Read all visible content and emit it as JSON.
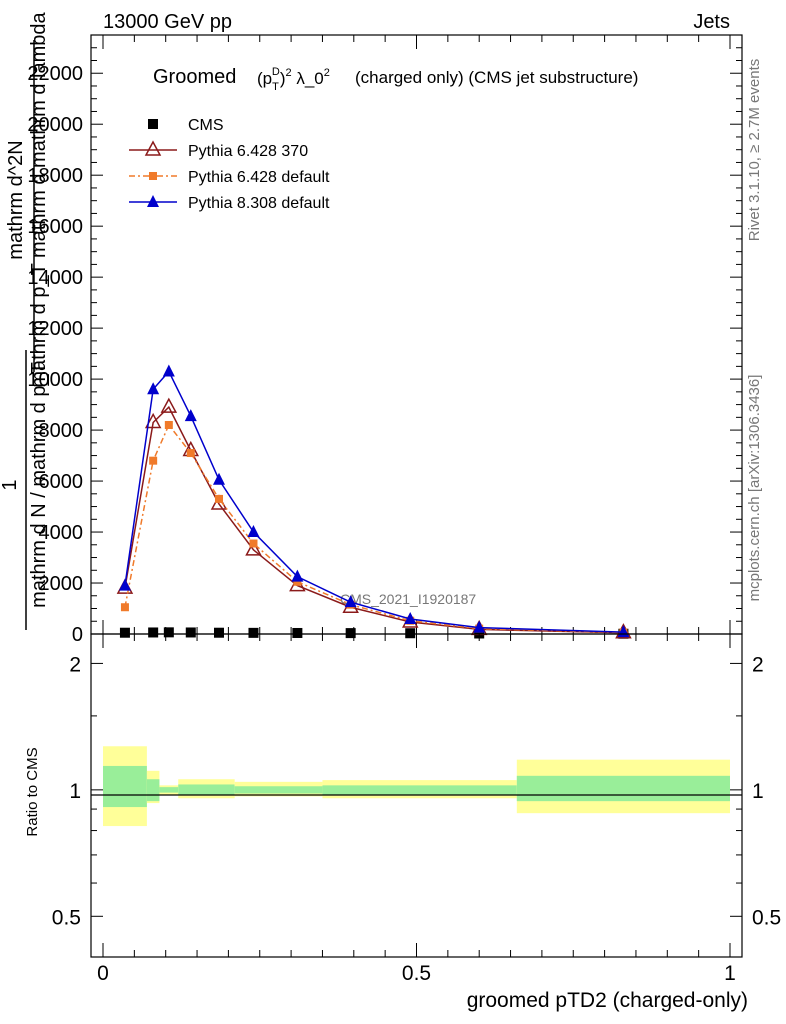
{
  "header": {
    "left": "13000 GeV pp",
    "right": "Jets"
  },
  "side_text": {
    "top": "Rivet 3.1.10, ≥ 2.7M events",
    "bottom": "mcplots.cern.ch [arXiv:1306.3436]"
  },
  "chart_data": [
    {
      "type": "line",
      "title_prefix": "Groomed",
      "title_math": "(p_T^D)^2 λ_0^2",
      "title_suffix": "(charged only) (CMS jet substructure)",
      "ylabel_lines": [
        "mathrm d^2N",
        "mathrm d p_T mathrm d mathrm d lambda",
        "1",
        "mathrm d N / mathrm d p_T"
      ],
      "watermark": "CMS_2021_I1920187",
      "xlim": [
        0,
        1
      ],
      "ylim": [
        0,
        23500
      ],
      "yticks": [
        0,
        2000,
        4000,
        6000,
        8000,
        10000,
        12000,
        14000,
        16000,
        18000,
        20000,
        22000
      ],
      "ytick_labels": [
        "0",
        "2000",
        "4000",
        "6000",
        "8000",
        "10000",
        "12000",
        "14000",
        "16000",
        "18000",
        "20000",
        "22000"
      ],
      "legend_position": "top-left",
      "x": [
        0.035,
        0.08,
        0.105,
        0.14,
        0.185,
        0.24,
        0.31,
        0.395,
        0.49,
        0.6,
        0.83
      ],
      "series": [
        {
          "name": "CMS",
          "color": "#000000",
          "marker": "square",
          "values": [
            50,
            60,
            65,
            60,
            50,
            45,
            40,
            35,
            30,
            20,
            10
          ]
        },
        {
          "name": "Pythia 6.428 370",
          "color": "#8b1a1a",
          "marker": "triangle-open",
          "values": [
            1800,
            8300,
            8900,
            7200,
            5100,
            3300,
            1900,
            1050,
            470,
            180,
            50
          ]
        },
        {
          "name": "Pythia 6.428 default",
          "color": "#f07a2a",
          "marker": "square-small",
          "values": [
            1050,
            6800,
            8200,
            7100,
            5300,
            3550,
            2050,
            1150,
            520,
            210,
            60
          ]
        },
        {
          "name": "Pythia 8.308 default",
          "color": "#0000cc",
          "marker": "triangle",
          "values": [
            1900,
            9600,
            10300,
            8550,
            6050,
            4000,
            2250,
            1250,
            590,
            250,
            75
          ]
        }
      ]
    },
    {
      "type": "band",
      "ylabel": "Ratio to CMS",
      "xlabel": "groomed pTD2 (charged-only)",
      "xlim": [
        0,
        1
      ],
      "ylim": [
        0.4,
        2.35
      ],
      "log_y": true,
      "yticks": [
        0.5,
        1,
        2
      ],
      "ytick_labels": [
        "0.5",
        "1",
        "2"
      ],
      "xticks": [
        0,
        0.5,
        1
      ],
      "xtick_labels": [
        "0",
        "0.5",
        "1"
      ],
      "reference": 1,
      "bins": [
        {
          "x0": 0.0,
          "x1": 0.07,
          "inner": [
            0.91,
            1.14
          ],
          "outer": [
            0.82,
            1.27
          ]
        },
        {
          "x0": 0.07,
          "x1": 0.09,
          "inner": [
            0.94,
            1.06
          ],
          "outer": [
            0.93,
            1.11
          ]
        },
        {
          "x0": 0.09,
          "x1": 0.12,
          "inner": [
            0.985,
            1.015
          ],
          "outer": [
            0.975,
            1.025
          ]
        },
        {
          "x0": 0.12,
          "x1": 0.21,
          "inner": [
            0.97,
            1.03
          ],
          "outer": [
            0.955,
            1.06
          ]
        },
        {
          "x0": 0.21,
          "x1": 0.35,
          "inner": [
            0.98,
            1.02
          ],
          "outer": [
            0.965,
            1.045
          ]
        },
        {
          "x0": 0.35,
          "x1": 0.66,
          "inner": [
            0.975,
            1.025
          ],
          "outer": [
            0.955,
            1.055
          ]
        },
        {
          "x0": 0.66,
          "x1": 1.0,
          "inner": [
            0.94,
            1.08
          ],
          "outer": [
            0.88,
            1.18
          ]
        }
      ]
    }
  ]
}
